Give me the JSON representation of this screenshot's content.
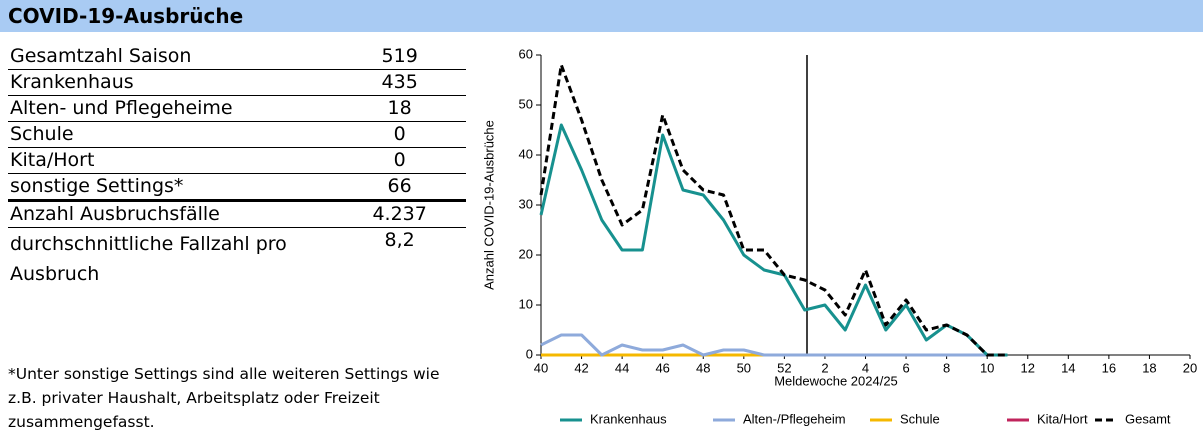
{
  "header": {
    "title": "COVID-19-Ausbrüche"
  },
  "table": {
    "rows": [
      [
        "Gesamtzahl Saison",
        "519"
      ],
      [
        "Krankenhaus",
        "435"
      ],
      [
        "Alten- und Pflegeheime",
        "18"
      ],
      [
        "Schule",
        "0"
      ],
      [
        "Kita/Hort",
        "0"
      ],
      [
        "sonstige Settings*",
        "66"
      ],
      [
        "Anzahl Ausbruchsfälle",
        "4.237"
      ],
      [
        "durchschnittliche Fallzahl pro Ausbruch",
        "8,2"
      ]
    ]
  },
  "footnote": "*Unter sonstige Settings sind alle weiteren Settings wie z.B. privater Haushalt, Arbeitsplatz oder Freizeit zusammengefasst.",
  "chart_data": {
    "type": "line",
    "x_label": "Meldewoche 2024/25",
    "y_label": "Anzahl COVID-19-Ausbrüche",
    "categories": [
      "40",
      null,
      "42",
      null,
      "44",
      null,
      "46",
      null,
      "48",
      null,
      "50",
      null,
      "52",
      null,
      "2",
      null,
      "4",
      null,
      "6",
      null,
      "8",
      null,
      "10",
      null,
      "12",
      null,
      "14",
      null,
      "16",
      null,
      "18",
      null,
      "20"
    ],
    "ylim": [
      0,
      60
    ],
    "yticks": [
      0,
      10,
      20,
      30,
      40,
      50,
      60
    ],
    "grid": false,
    "legend": "bottom",
    "series": [
      {
        "name": "Krankenhaus",
        "color": "#17918f",
        "style": "solid",
        "values": [
          28,
          46,
          37,
          27,
          21,
          21,
          44,
          33,
          32,
          27,
          20,
          17,
          16,
          9,
          10,
          5,
          14,
          5,
          10,
          3,
          6,
          4,
          0,
          0,
          null,
          null,
          null,
          null,
          null,
          null,
          null,
          null,
          null
        ]
      },
      {
        "name": "Alten-/Pflegeheim",
        "color": "#8eaadb",
        "style": "solid",
        "values": [
          2,
          4,
          4,
          0,
          2,
          1,
          1,
          2,
          0,
          1,
          1,
          0,
          0,
          0,
          0,
          0,
          0,
          0,
          0,
          0,
          0,
          0,
          0,
          0,
          null,
          null,
          null,
          null,
          null,
          null,
          null,
          null,
          null
        ]
      },
      {
        "name": "Schule",
        "color": "#f5b800",
        "style": "solid",
        "values": [
          0,
          0,
          0,
          0,
          0,
          0,
          0,
          0,
          0,
          0,
          0,
          0,
          0,
          0,
          0,
          0,
          0,
          0,
          0,
          0,
          0,
          0,
          0,
          0,
          null,
          null,
          null,
          null,
          null,
          null,
          null,
          null,
          null
        ]
      },
      {
        "name": "Kita/Hort",
        "color": "#c0245c",
        "style": "solid",
        "values": [
          0,
          0,
          0,
          0,
          0,
          0,
          0,
          0,
          0,
          0,
          0,
          0,
          0,
          0,
          0,
          0,
          0,
          0,
          0,
          0,
          0,
          0,
          0,
          0,
          null,
          null,
          null,
          null,
          null,
          null,
          null,
          null,
          null
        ]
      },
      {
        "name": "Gesamt",
        "color": "#000000",
        "style": "dashed",
        "values": [
          32,
          58,
          47,
          35,
          26,
          29,
          48,
          37,
          33,
          32,
          21,
          21,
          16,
          15,
          13,
          8,
          17,
          6,
          11,
          5,
          6,
          4,
          0,
          0,
          null,
          null,
          null,
          null,
          null,
          null,
          null,
          null,
          null
        ]
      }
    ]
  }
}
